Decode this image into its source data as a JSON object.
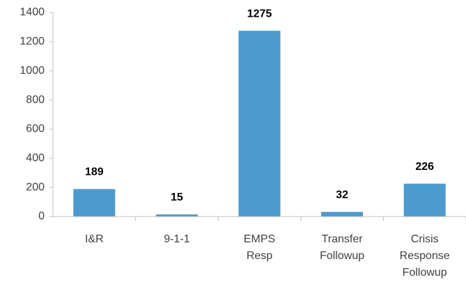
{
  "chart_data": {
    "type": "bar",
    "categories": [
      "I&R",
      "9-1-1",
      "EMPS Resp",
      "Transfer Followup",
      "Crisis Response Followup"
    ],
    "values": [
      189,
      15,
      1275,
      32,
      226
    ],
    "color": "#4b9ad0",
    "ylim": [
      0,
      1400
    ],
    "yticks": [
      0,
      200,
      400,
      600,
      800,
      1000,
      1200,
      1400
    ],
    "grid": false
  }
}
